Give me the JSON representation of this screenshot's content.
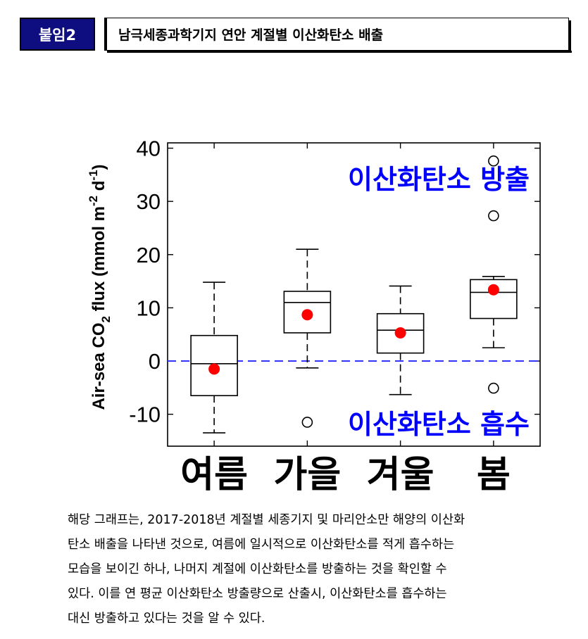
{
  "header": {
    "badge_label": "붙임2",
    "title": "남극세종과학기지 연안 계절별 이산화탄소 배출"
  },
  "chart_data": {
    "type": "box",
    "ylabel": "Air-sea CO₂ flux (mmol m⁻² d⁻¹)",
    "ylabel_parts": {
      "pre": "Air-sea CO",
      "sub": "2",
      "mid": " flux (mmol m",
      "sup1": "-2",
      "mid2": " d",
      "sup2": "-1",
      "post": ")"
    },
    "ylim": [
      -16,
      41
    ],
    "yticks": [
      40,
      30,
      20,
      10,
      0,
      -10
    ],
    "categories": [
      "여름",
      "가을",
      "겨울",
      "봄"
    ],
    "boxes": [
      {
        "category": "여름",
        "whisker_low": -13.5,
        "q1": -6.5,
        "median": -0.5,
        "q3": 4.8,
        "whisker_high": 14.8,
        "mean": -1.5,
        "outliers": []
      },
      {
        "category": "가을",
        "whisker_low": -1.3,
        "q1": 5.3,
        "median": 11.0,
        "q3": 13.1,
        "whisker_high": 21.0,
        "mean": 8.7,
        "outliers": [
          -11.5
        ]
      },
      {
        "category": "겨울",
        "whisker_low": -6.3,
        "q1": 1.5,
        "median": 5.8,
        "q3": 8.9,
        "whisker_high": 14.1,
        "mean": 5.3,
        "outliers": []
      },
      {
        "category": "봄",
        "whisker_low": 2.5,
        "q1": 8.0,
        "median": 12.9,
        "q3": 15.3,
        "whisker_high": 15.9,
        "mean": 13.4,
        "outliers": [
          37.6,
          27.3,
          -5.1
        ]
      }
    ],
    "reference_line": 0,
    "annotations": {
      "release": "이산화탄소 방출",
      "absorb": "이산화탄소 흡수"
    },
    "colors": {
      "mean": "#ff0000",
      "reference": "#3333ff",
      "annotation": "#0000ff"
    }
  },
  "caption": {
    "lines": [
      "해당 그래프는, 2017-2018년 계절별 세종기지 및 마리안소만 해양의 이산화",
      "탄소 배출을 나타낸 것으로, 여름에 일시적으로 이산화탄소를 적게 흡수하는",
      "모습을 보이긴 하나, 나머지 계절에 이산화탄소를 방출하는 것을 확인할 수",
      "있다.  이를 연 평균 이산화탄소 방출량으로 산출시, 이산화탄소를 흡수하는",
      "대신 방출하고 있다는 것을 알 수 있다."
    ]
  }
}
